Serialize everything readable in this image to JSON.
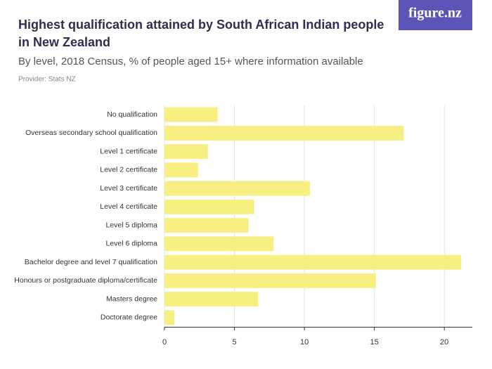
{
  "logo": "figure.nz",
  "chart_data": {
    "type": "bar",
    "orientation": "horizontal",
    "title": "Highest qualification attained by South African Indian people in New Zealand",
    "subtitle": "By level, 2018 Census, % of people aged 15+ where information available",
    "provider": "Provider: Stats NZ",
    "categories": [
      "No qualification",
      "Overseas secondary school qualification",
      "Level 1 certificate",
      "Level 2 certificate",
      "Level 3 certificate",
      "Level 4 certificate",
      "Level 5 diploma",
      "Level 6 diploma",
      "Bachelor degree and level 7 qualification",
      "Honours or postgraduate diploma/certificate",
      "Masters degree",
      "Doctorate degree"
    ],
    "values": [
      3.8,
      17.1,
      3.1,
      2.4,
      10.4,
      6.4,
      6.0,
      7.8,
      21.2,
      15.1,
      6.7,
      0.7
    ],
    "color": "#f8ef82",
    "xlim": [
      0,
      22
    ],
    "xticks": [
      0,
      5,
      10,
      15,
      20
    ],
    "grid": true
  }
}
